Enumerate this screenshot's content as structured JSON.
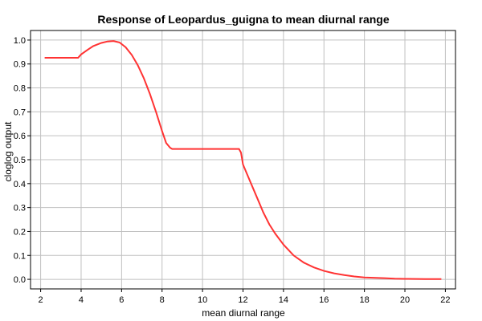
{
  "chart_data": {
    "type": "line",
    "title": "Response of Leopardus_guigna to mean diurnal range",
    "xlabel": "mean diurnal range",
    "ylabel": "cloglog output",
    "xlim": [
      1.5,
      22.5
    ],
    "ylim": [
      -0.04,
      1.04
    ],
    "x_ticks": [
      2,
      4,
      6,
      8,
      10,
      12,
      14,
      16,
      18,
      20,
      22
    ],
    "y_ticks": [
      0.0,
      0.1,
      0.2,
      0.3,
      0.4,
      0.5,
      0.6,
      0.7,
      0.8,
      0.9,
      1.0
    ],
    "grid": true,
    "line_color": "#ff3333",
    "series": [
      {
        "x": [
          2.2,
          3.0,
          3.85,
          4.0,
          4.3,
          4.6,
          5.0,
          5.3,
          5.6,
          5.9,
          6.2,
          6.5,
          6.8,
          7.1,
          7.4,
          7.7,
          8.0,
          8.2,
          8.4,
          8.5,
          9.0,
          10.0,
          11.0,
          11.8,
          11.9,
          12.0,
          12.2,
          12.5,
          12.8,
          13.0,
          13.3,
          13.6,
          14.0,
          14.5,
          15.0,
          15.5,
          16.0,
          16.5,
          17.0,
          17.5,
          18.0,
          19.0,
          19.5,
          20.0,
          21.0,
          21.8
        ],
        "y": [
          0.926,
          0.926,
          0.926,
          0.94,
          0.958,
          0.975,
          0.988,
          0.994,
          0.996,
          0.99,
          0.97,
          0.938,
          0.895,
          0.84,
          0.775,
          0.7,
          0.62,
          0.57,
          0.55,
          0.545,
          0.545,
          0.545,
          0.545,
          0.545,
          0.53,
          0.48,
          0.44,
          0.38,
          0.32,
          0.28,
          0.23,
          0.19,
          0.145,
          0.1,
          0.07,
          0.05,
          0.035,
          0.025,
          0.018,
          0.012,
          0.008,
          0.005,
          0.003,
          0.002,
          0.001,
          0.001
        ]
      }
    ]
  }
}
